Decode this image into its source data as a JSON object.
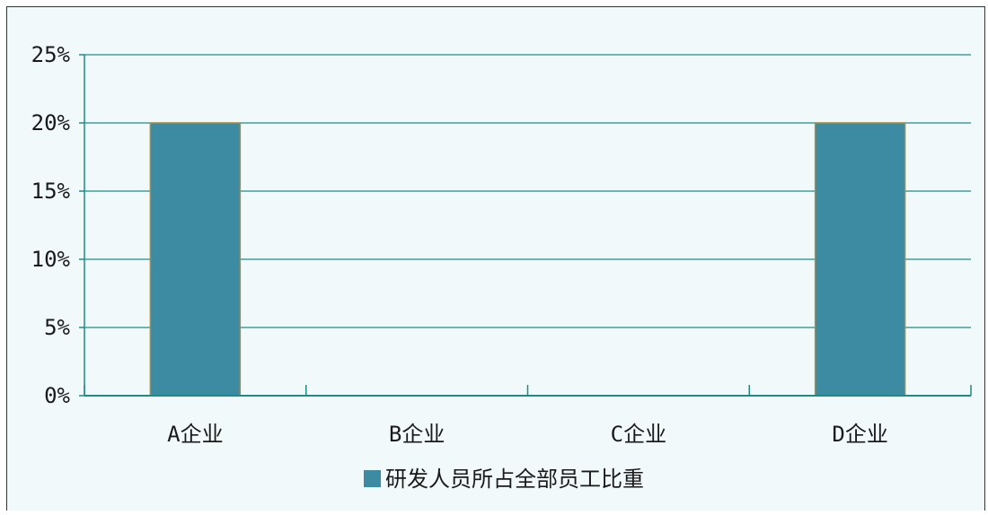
{
  "chart_data": {
    "type": "bar",
    "categories": [
      "A企业",
      "B企业",
      "C企业",
      "D企业"
    ],
    "series": [
      {
        "name": "研发人员所占全部员工比重",
        "values": [
          20,
          0,
          0,
          20
        ]
      }
    ],
    "y_ticks": [
      "0%",
      "5%",
      "10%",
      "15%",
      "20%",
      "25%"
    ],
    "y_tick_values": [
      0,
      5,
      10,
      15,
      20,
      25
    ],
    "ylim": [
      0,
      25
    ],
    "grid": true,
    "legend_position": "bottom",
    "colors": {
      "bar": "#3c8ba3",
      "bar_edge": "#b08a3a",
      "axis": "#1f8a8a",
      "gridline": "#1f8a8a",
      "background": "#f1f9fa"
    }
  }
}
